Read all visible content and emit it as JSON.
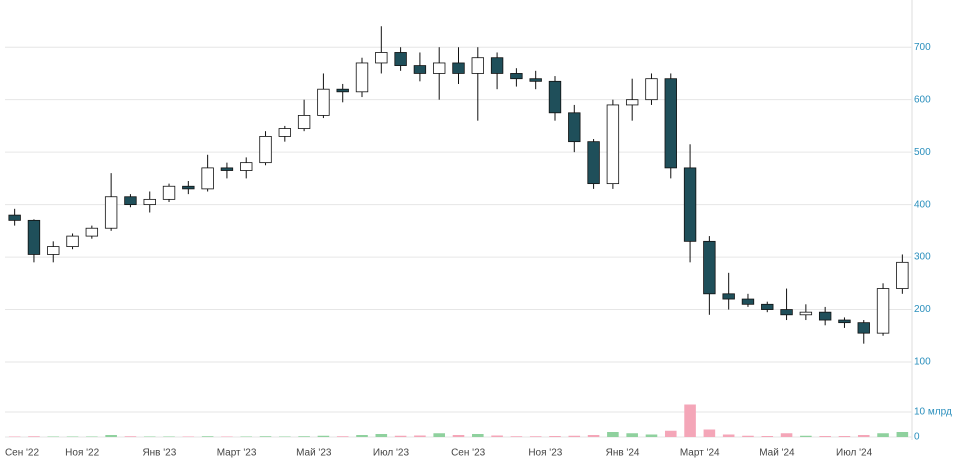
{
  "chart_data": {
    "type": "candlestick",
    "categories": [
      "Сен '22",
      null,
      null,
      null,
      "Ноя '22",
      null,
      null,
      null,
      "Янв '23",
      null,
      null,
      null,
      "Март '23",
      null,
      null,
      null,
      "Май '23",
      null,
      null,
      null,
      "Июл '23",
      null,
      null,
      null,
      "Сен '23",
      null,
      null,
      null,
      "Ноя '23",
      null,
      null,
      null,
      "Янв '24",
      null,
      null,
      null,
      "Март '24",
      null,
      null,
      null,
      "Май '24",
      null,
      null,
      null,
      "Июл '24",
      null,
      null
    ],
    "open": [
      380,
      370,
      305,
      320,
      340,
      355,
      415,
      400,
      410,
      435,
      430,
      470,
      465,
      480,
      530,
      545,
      570,
      620,
      615,
      670,
      690,
      665,
      650,
      670,
      650,
      680,
      650,
      640,
      635,
      575,
      520,
      440,
      590,
      600,
      640,
      470,
      330,
      230,
      220,
      210,
      200,
      190,
      195,
      180,
      175,
      155,
      240
    ],
    "high": [
      392,
      372,
      330,
      345,
      360,
      460,
      420,
      425,
      440,
      445,
      495,
      480,
      490,
      540,
      550,
      600,
      650,
      630,
      680,
      740,
      700,
      690,
      700,
      700,
      700,
      690,
      660,
      655,
      645,
      590,
      525,
      600,
      640,
      650,
      650,
      515,
      340,
      270,
      230,
      215,
      240,
      210,
      205,
      185,
      180,
      250,
      305
    ],
    "low": [
      360,
      290,
      290,
      315,
      335,
      350,
      395,
      385,
      405,
      420,
      425,
      450,
      450,
      475,
      520,
      540,
      565,
      595,
      605,
      650,
      655,
      635,
      600,
      630,
      560,
      620,
      625,
      620,
      560,
      500,
      430,
      430,
      560,
      590,
      450,
      290,
      190,
      200,
      205,
      195,
      180,
      180,
      170,
      165,
      135,
      150,
      230
    ],
    "close": [
      370,
      305,
      320,
      340,
      355,
      415,
      400,
      410,
      435,
      430,
      470,
      465,
      480,
      530,
      545,
      570,
      620,
      615,
      670,
      690,
      665,
      650,
      670,
      650,
      680,
      650,
      640,
      635,
      575,
      520,
      440,
      590,
      600,
      640,
      470,
      330,
      230,
      220,
      210,
      200,
      190,
      195,
      180,
      175,
      155,
      240,
      290
    ],
    "up_color": "#ffffff",
    "down_color": "#1f4f5a",
    "outline_color": "#111111",
    "ylim": [
      60,
      790
    ],
    "yticks": [
      100,
      200,
      300,
      400,
      500,
      600,
      700
    ],
    "grid": true,
    "volume": {
      "values": [
        0.2,
        0.3,
        0.2,
        0.2,
        0.2,
        0.8,
        0.3,
        0.2,
        0.2,
        0.2,
        0.3,
        0.2,
        0.2,
        0.3,
        0.2,
        0.3,
        0.5,
        0.3,
        0.8,
        1.2,
        0.5,
        0.6,
        1.5,
        0.8,
        1.2,
        0.6,
        0.3,
        0.3,
        0.4,
        0.5,
        0.8,
        2,
        1.5,
        1,
        2.5,
        13,
        3,
        1,
        0.5,
        0.4,
        1.5,
        0.5,
        0.4,
        0.4,
        0.8,
        1.5,
        2
      ],
      "up_color": "#8fd19e",
      "down_color": "#f4a6b8",
      "ylim": [
        0,
        20
      ],
      "yticks": [
        0,
        {
          "value": 10,
          "label": "10 млрд"
        }
      ]
    }
  }
}
